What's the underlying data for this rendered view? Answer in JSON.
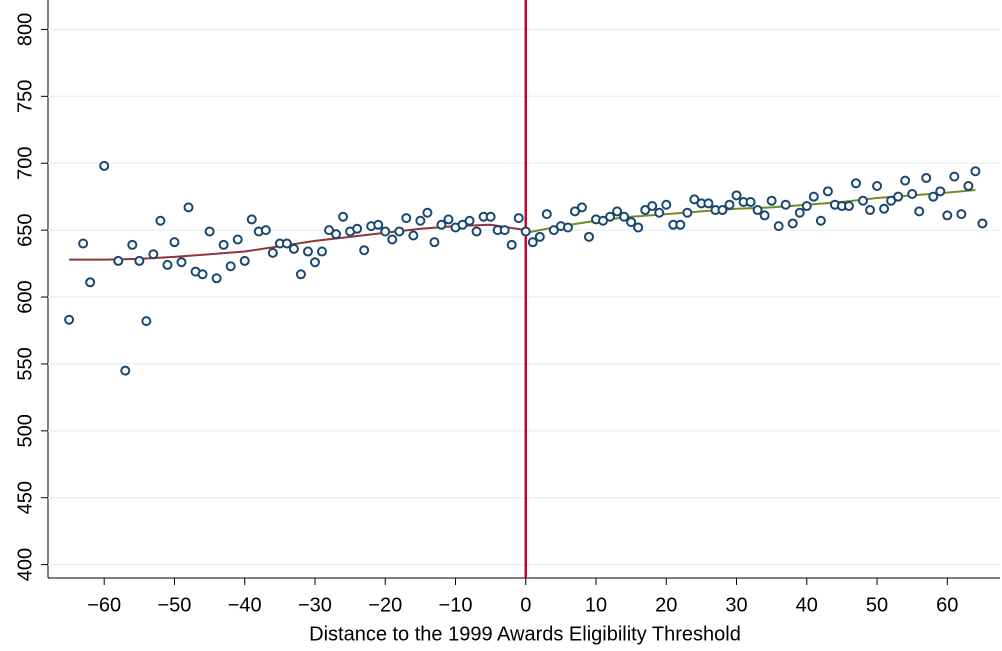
{
  "chart_data": {
    "type": "scatter",
    "x_label": "Distance to the 1999 Awards Eligibility Threshold",
    "xlim": [
      -68,
      67.5
    ],
    "ylim": [
      390,
      822
    ],
    "xticks": [
      {
        "value": -60,
        "label": "−60"
      },
      {
        "value": -50,
        "label": "−50"
      },
      {
        "value": -40,
        "label": "−40"
      },
      {
        "value": -30,
        "label": "−30"
      },
      {
        "value": -20,
        "label": "−20"
      },
      {
        "value": -10,
        "label": "−10"
      },
      0,
      10,
      20,
      30,
      40,
      50,
      60
    ],
    "yticks": [
      400,
      450,
      500,
      550,
      600,
      650,
      700,
      750,
      800
    ],
    "grid": true,
    "color": "#1a476f",
    "x": [
      -65,
      -63,
      -62,
      -60,
      -58,
      -57,
      -56,
      -55,
      -54,
      -53,
      -52,
      -51,
      -50,
      -49,
      -48,
      -47,
      -46,
      -45,
      -44,
      -43,
      -42,
      -41,
      -40,
      -39,
      -38,
      -37,
      -36,
      -35,
      -34,
      -33,
      -32,
      -31,
      -30,
      -29,
      -28,
      -27,
      -26,
      -25,
      -24,
      -23,
      -22,
      -21,
      -20,
      -19,
      -18,
      -17,
      -16,
      -15,
      -14,
      -13,
      -12,
      -11,
      -10,
      -9,
      -8,
      -7,
      -6,
      -5,
      -4,
      -3,
      -2,
      -1,
      0,
      1,
      2,
      3,
      4,
      5,
      6,
      7,
      8,
      9,
      10,
      11,
      12,
      13,
      14,
      15,
      16,
      17,
      18,
      19,
      20,
      21,
      22,
      23,
      24,
      25,
      26,
      27,
      28,
      29,
      30,
      31,
      32,
      33,
      34,
      35,
      36,
      37,
      38,
      39,
      40,
      41,
      42,
      43,
      44,
      45,
      46,
      47,
      48,
      49,
      50,
      51,
      52,
      53,
      54,
      55,
      56,
      57,
      58,
      59,
      60,
      61,
      62,
      63,
      64,
      65
    ],
    "values": [
      583,
      640,
      611,
      698,
      627,
      545,
      639,
      627,
      582,
      632,
      657,
      624,
      641,
      626,
      667,
      619,
      617,
      649,
      614,
      639,
      623,
      643,
      627,
      658,
      649,
      650,
      633,
      640,
      640,
      636,
      617,
      634,
      626,
      634,
      650,
      647,
      660,
      649,
      651,
      635,
      653,
      654,
      649,
      643,
      649,
      659,
      646,
      657,
      663,
      641,
      654,
      658,
      652,
      654,
      657,
      649,
      660,
      660,
      650,
      650,
      639,
      659,
      649,
      641,
      645,
      662,
      650,
      653,
      652,
      664,
      667,
      645,
      658,
      657,
      660,
      664,
      660,
      656,
      652,
      665,
      668,
      663,
      669,
      654,
      654,
      663,
      673,
      670,
      670,
      665,
      665,
      669,
      676,
      671,
      671,
      665,
      661,
      672,
      653,
      669,
      655,
      663,
      668,
      675,
      657,
      679,
      669,
      668,
      668,
      685,
      672,
      665,
      683,
      666,
      672,
      675,
      687,
      677,
      664,
      689,
      675,
      679,
      661,
      690,
      662,
      683,
      694,
      655
    ],
    "fits": [
      {
        "color": "#90353b",
        "x": [
          -65,
          -60,
          -55,
          -50,
          -45,
          -40,
          -35,
          -30,
          -25,
          -20,
          -15,
          -10,
          -5,
          0
        ],
        "values": [
          628,
          628,
          628.5,
          630,
          632,
          634,
          638,
          642,
          645,
          648,
          651,
          653,
          654,
          650
        ]
      },
      {
        "color": "#6e8e23",
        "x": [
          0,
          5,
          10,
          15,
          20,
          25,
          30,
          35,
          40,
          45,
          50,
          55,
          60,
          64
        ],
        "values": [
          648,
          653,
          657,
          660,
          662,
          664,
          666,
          667,
          669,
          671,
          674,
          676,
          678,
          680
        ]
      }
    ],
    "threshold": {
      "x": 0,
      "color": "#c10534"
    }
  }
}
